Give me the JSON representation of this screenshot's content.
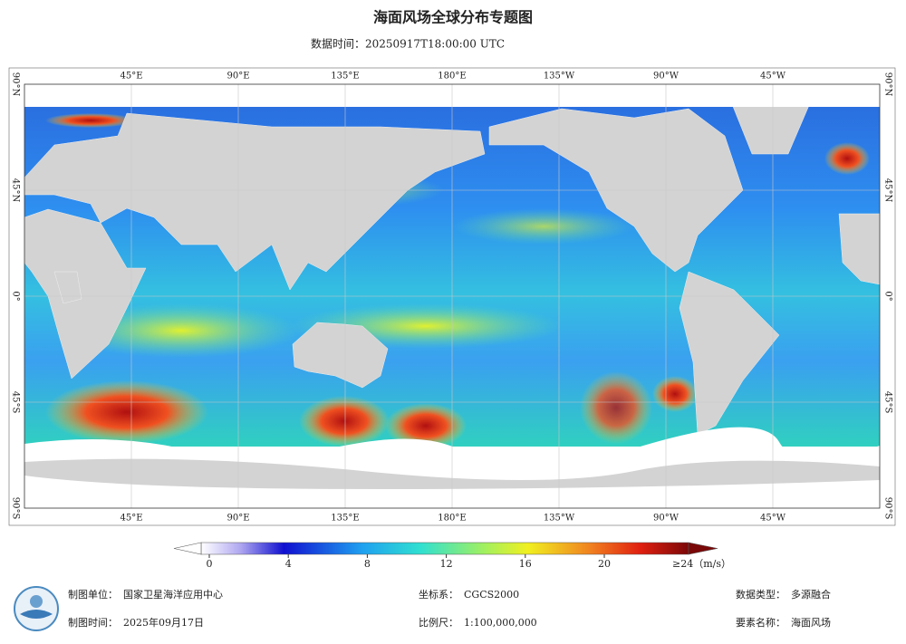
{
  "header": {
    "title": "海面风场全球分布专题图",
    "time": "数据时间：20250917T18:00:00 UTC"
  },
  "map": {
    "lon_labels": [
      "45°E",
      "90°E",
      "135°E",
      "180°E",
      "135°W",
      "90°W",
      "45°W"
    ],
    "lat_labels": [
      "90°N",
      "45°N",
      "0°",
      "45°S",
      "90°S"
    ]
  },
  "colorbar": {
    "ticks": [
      0,
      4,
      8,
      12,
      16,
      20
    ],
    "max_label": "≥24（m/s）"
  },
  "footer": {
    "items": [
      {
        "label": "制图单位：",
        "value": "国家卫星海洋应用中心"
      },
      {
        "label": "制图时间：",
        "value": "2025年09月17日"
      },
      {
        "label": "坐标系：",
        "value": "CGCS2000"
      },
      {
        "label": "比例尺：",
        "value": "1:100,000,000"
      },
      {
        "label": "数据类型：",
        "value": "多源融合"
      },
      {
        "label": "要素名称：",
        "value": "海面风场"
      }
    ]
  }
}
